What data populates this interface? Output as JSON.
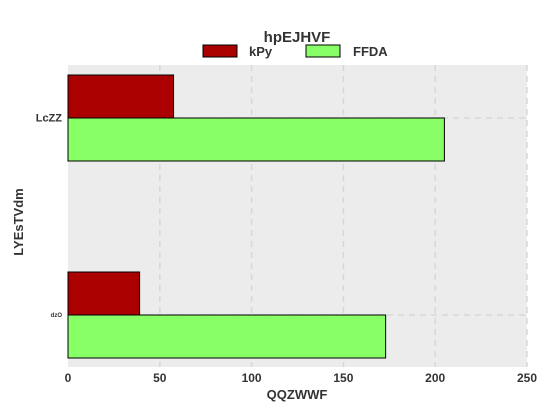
{
  "chart_data": {
    "type": "bar",
    "orientation": "horizontal",
    "title": "hpEJHVF",
    "xlabel": "QQZWWF",
    "ylabel": "LYEsTVdm",
    "categories": [
      "LcZZ",
      "dzO"
    ],
    "series": [
      {
        "name": "kPy",
        "values": [
          57.5,
          39
        ],
        "color": "#aa0000"
      },
      {
        "name": "FFDA",
        "values": [
          205,
          173
        ],
        "color": "#88ff66"
      }
    ],
    "xlim": [
      0,
      250
    ],
    "xticks": [
      0,
      50,
      100,
      150,
      200,
      250
    ],
    "grid": true,
    "legend_position": "top-center",
    "background_color": "#ececec"
  }
}
